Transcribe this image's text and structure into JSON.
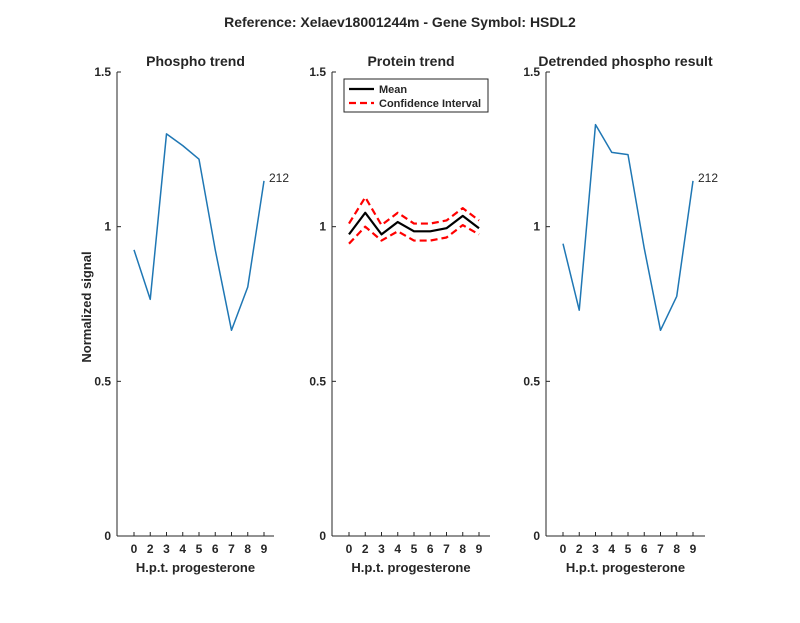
{
  "figure_title": "Reference:  Xelaev18001244m - Gene Symbol:  HSDL2",
  "chart_data": [
    {
      "type": "line",
      "title": "Phospho trend",
      "xlabel": "H.p.t. progesterone",
      "ylabel": "Normalized signal",
      "categories": [
        "0",
        "2",
        "3",
        "4",
        "5",
        "6",
        "7",
        "8",
        "9"
      ],
      "ylim": [
        0,
        1.5
      ],
      "yticks": [
        "0",
        "0.5",
        "1",
        "1.5"
      ],
      "series": [
        {
          "values": [
            0.925,
            0.765,
            1.3,
            1.262,
            1.218,
            0.925,
            0.665,
            0.805,
            1.148
          ],
          "color": "#1f77b4"
        }
      ],
      "annotation": "212"
    },
    {
      "type": "line",
      "title": "Protein trend",
      "xlabel": "H.p.t. progesterone",
      "ylabel": "",
      "categories": [
        "0",
        "2",
        "3",
        "4",
        "5",
        "6",
        "7",
        "8",
        "9"
      ],
      "ylim": [
        0,
        1.5
      ],
      "yticks": [
        "0",
        "0.5",
        "1",
        "1.5"
      ],
      "series": [
        {
          "name": "Mean",
          "values": [
            0.975,
            1.045,
            0.975,
            1.015,
            0.985,
            0.985,
            0.995,
            1.035,
            0.995
          ],
          "color": "#000000"
        },
        {
          "name": "Confidence Interval",
          "values": [
            1.01,
            1.095,
            1.005,
            1.045,
            1.01,
            1.01,
            1.02,
            1.06,
            1.02
          ],
          "color": "#ff0000",
          "dashed": true
        },
        {
          "values": [
            0.945,
            1.0,
            0.955,
            0.985,
            0.955,
            0.955,
            0.965,
            1.005,
            0.975
          ],
          "color": "#ff0000",
          "dashed": true
        }
      ],
      "legend": {
        "placement": "top-right",
        "entries": [
          "Mean",
          "Confidence Interval"
        ]
      }
    },
    {
      "type": "line",
      "title": "Detrended phospho result",
      "xlabel": "H.p.t. progesterone",
      "ylabel": "",
      "categories": [
        "0",
        "2",
        "3",
        "4",
        "5",
        "6",
        "7",
        "8",
        "9"
      ],
      "ylim": [
        0,
        1.5
      ],
      "yticks": [
        "0",
        "0.5",
        "1",
        "1.5"
      ],
      "series": [
        {
          "values": [
            0.945,
            0.73,
            1.33,
            1.24,
            1.233,
            0.93,
            0.665,
            0.775,
            1.148
          ],
          "color": "#1f77b4"
        }
      ],
      "annotation": "212"
    }
  ]
}
